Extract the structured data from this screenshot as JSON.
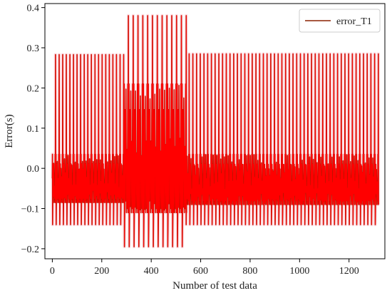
{
  "chart_data": {
    "type": "line",
    "title": "",
    "xlabel": "Number of test data",
    "ylabel": "Error(s)",
    "xlim": [
      -30,
      1345
    ],
    "ylim": [
      -0.225,
      0.41
    ],
    "xticks": [
      0,
      200,
      400,
      600,
      800,
      1000,
      1200
    ],
    "yticks": [
      -0.2,
      -0.1,
      0.0,
      0.1,
      0.2,
      0.3,
      0.4
    ],
    "xtick_labels": [
      "0",
      "200",
      "400",
      "600",
      "800",
      "1000",
      "1200"
    ],
    "ytick_labels": [
      "−0.2",
      "−0.1",
      "0.0",
      "0.1",
      "0.2",
      "0.3",
      "0.4"
    ],
    "grid": false,
    "legend_position": "top-right",
    "series": [
      {
        "name": "error_T1",
        "color": "#ff0000",
        "edge_color": "#8b2000",
        "segments": [
          {
            "x_range": [
              0,
              290
            ],
            "period": 14.5,
            "peak": 0.283,
            "trough": -0.14,
            "band_low": -0.085,
            "band_high": 0.035
          },
          {
            "x_range": [
              290,
              540
            ],
            "period": 19.5,
            "peak": 0.38,
            "trough": -0.195,
            "band_low": -0.11,
            "band_high": 0.21
          },
          {
            "x_range": [
              540,
              1320
            ],
            "period": 15.0,
            "peak": 0.285,
            "trough": -0.14,
            "band_low": -0.09,
            "band_high": 0.035
          }
        ]
      }
    ]
  }
}
